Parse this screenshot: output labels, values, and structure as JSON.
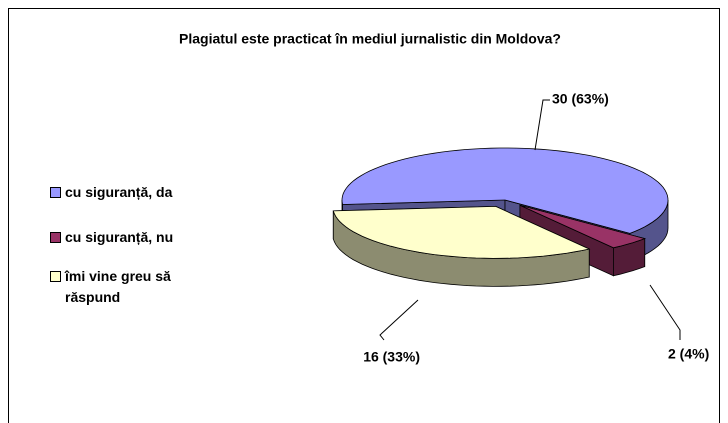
{
  "chart_data": {
    "type": "pie",
    "title": "Plagiatul este practicat în mediul jurnalistic din Moldova?",
    "categories": [
      "cu siguranță, da",
      "cu siguranță, nu",
      "îmi vine greu să răspund"
    ],
    "values": [
      30,
      2,
      16
    ],
    "value_labels": [
      "30 (63%)",
      "2 (4%)",
      "16 (33%)"
    ],
    "colors": [
      "#9999ff",
      "#993366",
      "#ffffcc"
    ],
    "legend": "left"
  }
}
